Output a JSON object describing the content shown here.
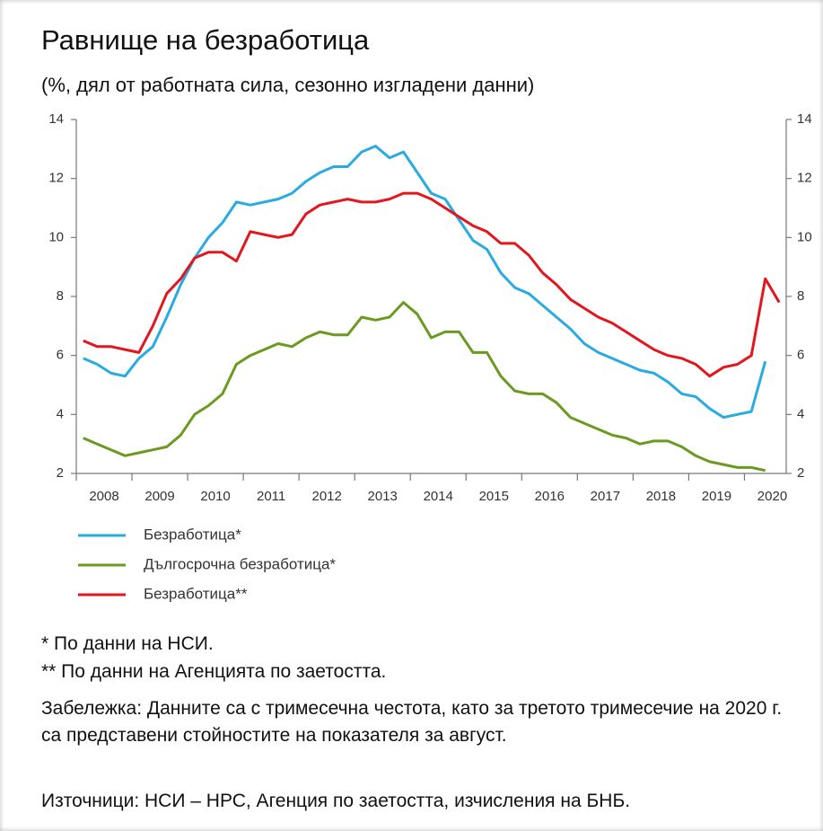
{
  "chart_data": {
    "type": "line",
    "title": "Равнище на безработица",
    "subtitle": "(%, дял от работната сила, сезонно изгладени данни)",
    "categories": [
      null,
      "2008",
      null,
      null,
      null,
      "2009",
      null,
      null,
      null,
      "2010",
      null,
      null,
      null,
      "2011",
      null,
      null,
      null,
      "2012",
      null,
      null,
      null,
      "2013",
      null,
      null,
      null,
      "2014",
      null,
      null,
      null,
      "2015",
      null,
      null,
      null,
      "2016",
      null,
      null,
      null,
      "2017",
      null,
      null,
      null,
      "2018",
      null,
      null,
      null,
      "2019",
      null,
      null,
      null,
      "2020",
      null
    ],
    "series": [
      {
        "name": "Безработица*",
        "color": "#29abe2",
        "values": [
          5.9,
          5.7,
          5.4,
          5.3,
          5.9,
          6.3,
          7.3,
          8.4,
          9.3,
          10.0,
          10.5,
          11.2,
          11.1,
          11.2,
          11.3,
          11.5,
          11.9,
          12.2,
          12.4,
          12.4,
          12.9,
          13.1,
          12.7,
          12.9,
          12.2,
          11.5,
          11.3,
          10.6,
          9.9,
          9.6,
          8.8,
          8.3,
          8.1,
          7.7,
          7.3,
          6.9,
          6.4,
          6.1,
          5.9,
          5.7,
          5.5,
          5.4,
          5.1,
          4.7,
          4.6,
          4.2,
          3.9,
          4.0,
          4.1,
          5.8,
          null
        ]
      },
      {
        "name": "Дългосрочна безработица*",
        "color": "#6a9a1f",
        "values": [
          3.2,
          3.0,
          2.8,
          2.6,
          2.7,
          2.8,
          2.9,
          3.3,
          4.0,
          4.3,
          4.7,
          5.7,
          6.0,
          6.2,
          6.4,
          6.3,
          6.6,
          6.8,
          6.7,
          6.7,
          7.3,
          7.2,
          7.3,
          7.8,
          7.4,
          6.6,
          6.8,
          6.8,
          6.1,
          6.1,
          5.3,
          4.8,
          4.7,
          4.7,
          4.4,
          3.9,
          3.7,
          3.5,
          3.3,
          3.2,
          3.0,
          3.1,
          3.1,
          2.9,
          2.6,
          2.4,
          2.3,
          2.2,
          2.2,
          2.1,
          null
        ]
      },
      {
        "name": "Безработица**",
        "color": "#e3161d",
        "values": [
          6.5,
          6.3,
          6.3,
          6.2,
          6.1,
          7.0,
          8.1,
          8.6,
          9.3,
          9.5,
          9.5,
          9.2,
          10.2,
          10.1,
          10.0,
          10.1,
          10.8,
          11.1,
          11.2,
          11.3,
          11.2,
          11.2,
          11.3,
          11.5,
          11.5,
          11.3,
          11.0,
          10.7,
          10.4,
          10.2,
          9.8,
          9.8,
          9.4,
          8.8,
          8.4,
          7.9,
          7.6,
          7.3,
          7.1,
          6.8,
          6.5,
          6.2,
          6.0,
          5.9,
          5.7,
          5.3,
          5.6,
          5.7,
          6.0,
          8.6,
          7.8
        ]
      }
    ],
    "ylim": [
      2,
      14
    ],
    "yticks": [
      2,
      4,
      6,
      8,
      10,
      12,
      14
    ],
    "y2lim": [
      2,
      14
    ],
    "y2ticks": [
      2,
      4,
      6,
      8,
      10,
      12,
      14
    ],
    "grid": false
  },
  "notes": {
    "footnote1": "* По данни на НСИ.",
    "footnote2": "** По данни на Агенцията по заетостта.",
    "remark": "Забележка: Данните са с тримесечна честота, като за третото тримесечие на 2020 г. са представени стойностите на показателя за август.",
    "source": "Източници: НСИ – НРС, Агенция по заетостта, изчисления на БНБ."
  }
}
